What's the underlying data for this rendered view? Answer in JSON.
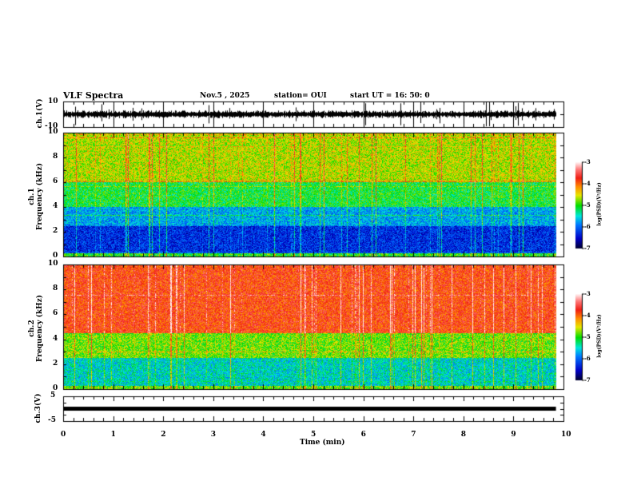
{
  "header": {
    "title": "VLF Spectra",
    "date": "Nov.5  , 2025",
    "station": "station= OUI",
    "start": "start  UT =   16: 50: 0"
  },
  "chart_data": [
    {
      "type": "line",
      "name": "ch1",
      "ylabel": "ch.1(V)",
      "ylim": [
        -10,
        10
      ],
      "yticks": [
        "10",
        "-10"
      ],
      "xlim": [
        0,
        10
      ],
      "baseline": 0
    },
    {
      "type": "heatmap",
      "name": "ch1-spectrogram",
      "ylabel_top": "ch.1",
      "ylabel": "Frequency  (kHz)",
      "ylim": [
        0,
        10
      ],
      "yticks": [
        "0",
        "2",
        "4",
        "6",
        "8",
        "10"
      ],
      "xlim": [
        0,
        10
      ],
      "data_end_min": 9.85,
      "colorbar": {
        "label": "log(PSD)(V²/Hz)",
        "range": [
          -7,
          -3
        ],
        "ticks": [
          "-3",
          "-4",
          "-5",
          "-6",
          "-7"
        ]
      }
    },
    {
      "type": "heatmap",
      "name": "ch2-spectrogram",
      "ylabel_top": "ch.2",
      "ylabel": "Frequency  (kHz)",
      "ylim": [
        0,
        10
      ],
      "yticks": [
        "0",
        "2",
        "4",
        "6",
        "8",
        "10"
      ],
      "xlim": [
        0,
        10
      ],
      "data_end_min": 9.85,
      "colorbar": {
        "label": "log(PSD)(V²/Hz)",
        "range": [
          -7,
          -3
        ],
        "ticks": [
          "-3",
          "-4",
          "-5",
          "-6",
          "-7"
        ]
      }
    },
    {
      "type": "line",
      "name": "ch3",
      "ylabel": "ch.3(V)",
      "ylim": [
        -5,
        5
      ],
      "yticks": [
        "5",
        "-5"
      ],
      "xlim": [
        0,
        10
      ],
      "value": 0
    }
  ],
  "xaxis": {
    "label": "Time  (min)",
    "ticks": [
      "0",
      "1",
      "2",
      "3",
      "4",
      "5",
      "6",
      "7",
      "8",
      "9",
      "10"
    ]
  }
}
